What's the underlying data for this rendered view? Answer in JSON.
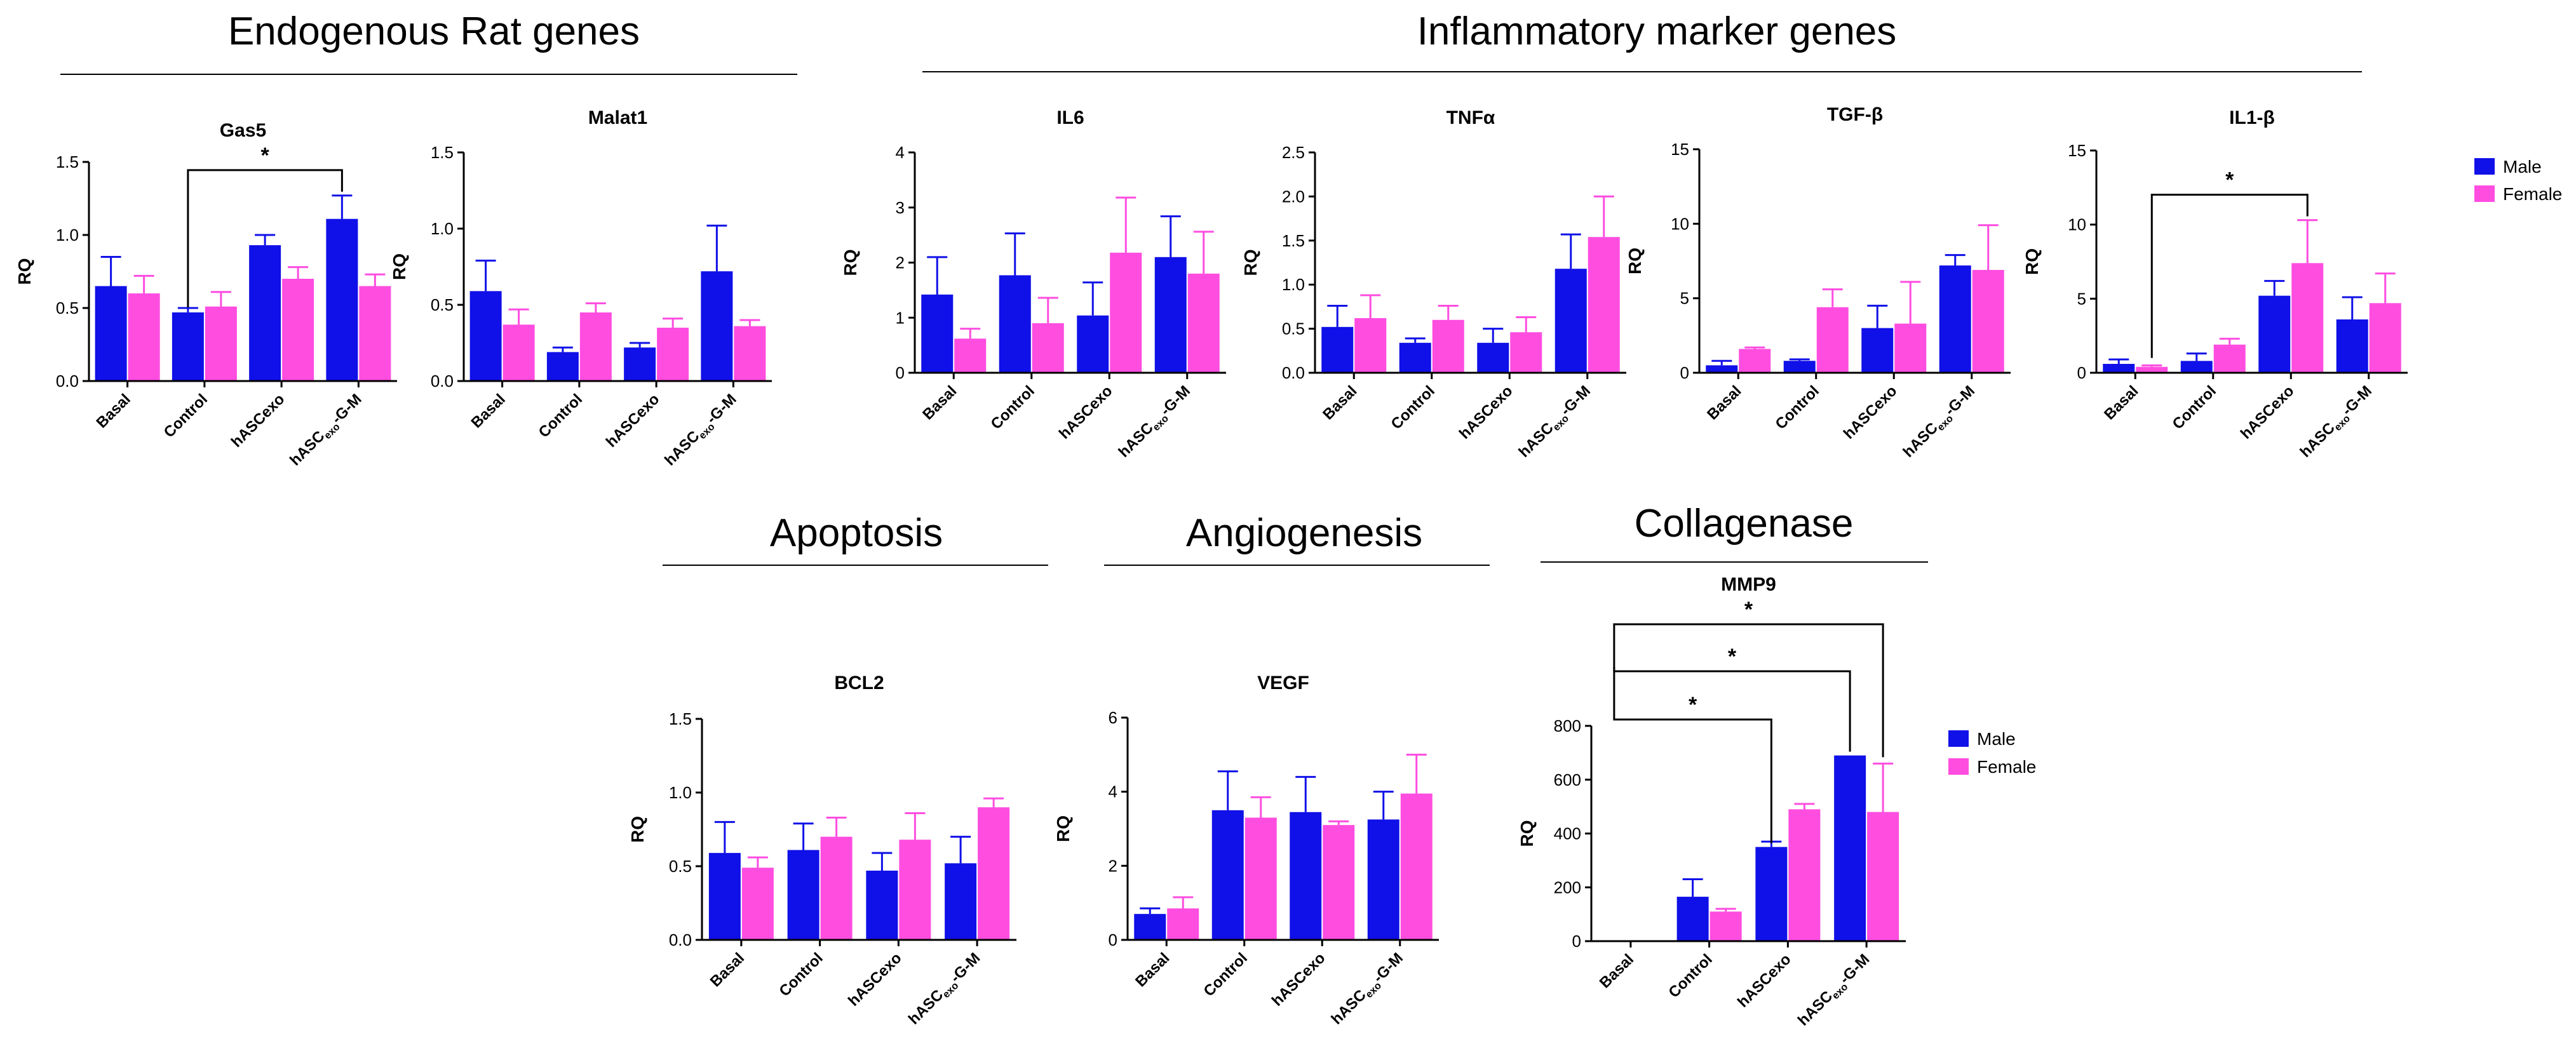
{
  "colors": {
    "male": "#1010e8",
    "female": "#ff4de0"
  },
  "sections": [
    {
      "id": "endo",
      "label": "Endogenous Rat genes"
    },
    {
      "id": "infl",
      "label": "Inflammatory marker genes"
    },
    {
      "id": "apop",
      "label": "Apoptosis"
    },
    {
      "id": "angio",
      "label": "Angiogenesis"
    },
    {
      "id": "coll",
      "label": "Collagenase"
    }
  ],
  "legends": [
    {
      "id": "leg-top",
      "male": "Male",
      "female": "Female"
    },
    {
      "id": "leg-mmp9",
      "male": "Male",
      "female": "Female"
    }
  ],
  "chart_data": [
    {
      "id": "gas5",
      "type": "bar",
      "title": "Gas5",
      "ylabel": "RQ",
      "categories": [
        "Basal",
        "Control",
        "hASCexo",
        "hASCexo-G-M"
      ],
      "ylim": [
        0,
        1.5
      ],
      "yticks": [
        "0.0",
        "0.5",
        "1.0",
        "1.5"
      ],
      "series": [
        {
          "name": "Male",
          "values": [
            0.65,
            0.47,
            0.93,
            1.11
          ],
          "errors": [
            0.2,
            0.03,
            0.07,
            0.16
          ]
        },
        {
          "name": "Female",
          "values": [
            0.6,
            0.51,
            0.7,
            0.65
          ],
          "errors": [
            0.12,
            0.1,
            0.08,
            0.08
          ]
        }
      ],
      "significance": [
        {
          "from": [
            1,
            0
          ],
          "to": [
            3,
            0
          ],
          "label": "*"
        }
      ]
    },
    {
      "id": "malat1",
      "type": "bar",
      "title": "Malat1",
      "ylabel": "RQ",
      "categories": [
        "Basal",
        "Control",
        "hASCexo",
        "hASCexo-G-M"
      ],
      "ylim": [
        0,
        1.5
      ],
      "yticks": [
        "0.0",
        "0.5",
        "1.0",
        "1.5"
      ],
      "series": [
        {
          "name": "Male",
          "values": [
            0.59,
            0.19,
            0.22,
            0.72
          ],
          "errors": [
            0.2,
            0.03,
            0.03,
            0.3
          ]
        },
        {
          "name": "Female",
          "values": [
            0.37,
            0.45,
            0.35,
            0.36
          ],
          "errors": [
            0.1,
            0.06,
            0.06,
            0.04
          ]
        }
      ],
      "significance": []
    },
    {
      "id": "il6",
      "type": "bar",
      "title": "IL6",
      "ylabel": "RQ",
      "categories": [
        "Basal",
        "Control",
        "hASCexo",
        "hASCexo-G-M"
      ],
      "ylim": [
        0,
        4
      ],
      "yticks": [
        "0",
        "1",
        "2",
        "3",
        "4"
      ],
      "series": [
        {
          "name": "Male",
          "values": [
            1.42,
            1.77,
            1.04,
            2.1
          ],
          "errors": [
            0.68,
            0.76,
            0.6,
            0.74
          ]
        },
        {
          "name": "Female",
          "values": [
            0.62,
            0.9,
            2.18,
            1.8
          ],
          "errors": [
            0.18,
            0.46,
            1.0,
            0.76
          ]
        }
      ],
      "significance": []
    },
    {
      "id": "tnfa",
      "type": "bar",
      "title": "TNFα",
      "ylabel": "RQ",
      "categories": [
        "Basal",
        "Control",
        "hASCexo",
        "hASCexo-G-M"
      ],
      "ylim": [
        0,
        2.5
      ],
      "yticks": [
        "0.0",
        "0.5",
        "1.0",
        "1.5",
        "2.0",
        "2.5"
      ],
      "series": [
        {
          "name": "Male",
          "values": [
            0.52,
            0.34,
            0.34,
            1.18
          ],
          "errors": [
            0.24,
            0.05,
            0.16,
            0.39
          ]
        },
        {
          "name": "Female",
          "values": [
            0.62,
            0.6,
            0.46,
            1.54
          ],
          "errors": [
            0.26,
            0.16,
            0.17,
            0.46
          ]
        }
      ],
      "significance": []
    },
    {
      "id": "tgfb",
      "type": "bar",
      "title": "TGF-β",
      "ylabel": "RQ",
      "categories": [
        "Basal",
        "Control",
        "hASCexo",
        "hASCexo-G-M"
      ],
      "ylim": [
        0,
        15
      ],
      "yticks": [
        "0",
        "5",
        "10",
        "15"
      ],
      "series": [
        {
          "name": "Male",
          "values": [
            0.5,
            0.8,
            3.0,
            7.2
          ],
          "errors": [
            0.3,
            0.1,
            1.5,
            0.7
          ]
        },
        {
          "name": "Female",
          "values": [
            1.6,
            4.4,
            3.3,
            6.9
          ],
          "errors": [
            0.1,
            1.2,
            2.8,
            3.0
          ]
        }
      ],
      "significance": []
    },
    {
      "id": "il1b",
      "type": "bar",
      "title": "IL1-β",
      "ylabel": "RQ",
      "categories": [
        "Basal",
        "Control",
        "hASCexo",
        "hASCexo-G-M"
      ],
      "ylim": [
        0,
        15
      ],
      "yticks": [
        "0",
        "5",
        "10",
        "15"
      ],
      "series": [
        {
          "name": "Male",
          "values": [
            0.6,
            0.8,
            5.2,
            3.6
          ],
          "errors": [
            0.3,
            0.5,
            1.0,
            1.5
          ]
        },
        {
          "name": "Female",
          "values": [
            0.4,
            1.9,
            7.4,
            4.7
          ],
          "errors": [
            0.1,
            0.4,
            2.9,
            2.0
          ]
        }
      ],
      "significance": [
        {
          "from": [
            0,
            1
          ],
          "to": [
            2,
            1
          ],
          "label": "*"
        }
      ]
    },
    {
      "id": "bcl2",
      "type": "bar",
      "title": "BCL2",
      "ylabel": "RQ",
      "categories": [
        "Basal",
        "Control",
        "hASCexo",
        "hASCexo-G-M"
      ],
      "ylim": [
        0,
        1.5
      ],
      "yticks": [
        "0.0",
        "0.5",
        "1.0",
        "1.5"
      ],
      "series": [
        {
          "name": "Male",
          "values": [
            0.59,
            0.61,
            0.47,
            0.52
          ],
          "errors": [
            0.21,
            0.18,
            0.12,
            0.18
          ]
        },
        {
          "name": "Female",
          "values": [
            0.49,
            0.7,
            0.68,
            0.9
          ],
          "errors": [
            0.07,
            0.13,
            0.18,
            0.06
          ]
        }
      ],
      "significance": []
    },
    {
      "id": "vegf",
      "type": "bar",
      "title": "VEGF",
      "ylabel": "RQ",
      "categories": [
        "Basal",
        "Control",
        "hASCexo",
        "hASCexo-G-M"
      ],
      "ylim": [
        0,
        6
      ],
      "yticks": [
        "0",
        "2",
        "4",
        "6"
      ],
      "series": [
        {
          "name": "Male",
          "values": [
            0.7,
            3.5,
            3.45,
            3.25
          ],
          "errors": [
            0.15,
            1.05,
            0.95,
            0.75
          ]
        },
        {
          "name": "Female",
          "values": [
            0.85,
            3.3,
            3.1,
            3.95
          ],
          "errors": [
            0.3,
            0.55,
            0.1,
            1.05
          ]
        }
      ],
      "significance": []
    },
    {
      "id": "mmp9",
      "type": "bar",
      "title": "MMP9",
      "ylabel": "RQ",
      "categories": [
        "Basal",
        "Control",
        "hASCexo",
        "hASCexo-G-M"
      ],
      "ylim": [
        0,
        800
      ],
      "yticks": [
        "0",
        "200",
        "400",
        "600",
        "800"
      ],
      "series": [
        {
          "name": "Male",
          "values": [
            0,
            165,
            350,
            690
          ],
          "errors": [
            0,
            65,
            20,
            0
          ]
        },
        {
          "name": "Female",
          "values": [
            0,
            110,
            490,
            480
          ],
          "errors": [
            0,
            10,
            20,
            180
          ]
        }
      ],
      "significance": [
        {
          "from": [
            0,
            0
          ],
          "to": [
            2,
            0
          ],
          "label": "*"
        },
        {
          "from": [
            0,
            0
          ],
          "to": [
            3,
            0
          ],
          "label": "*"
        },
        {
          "from": [
            0,
            0
          ],
          "to": [
            3,
            1
          ],
          "label": "*"
        }
      ]
    }
  ]
}
